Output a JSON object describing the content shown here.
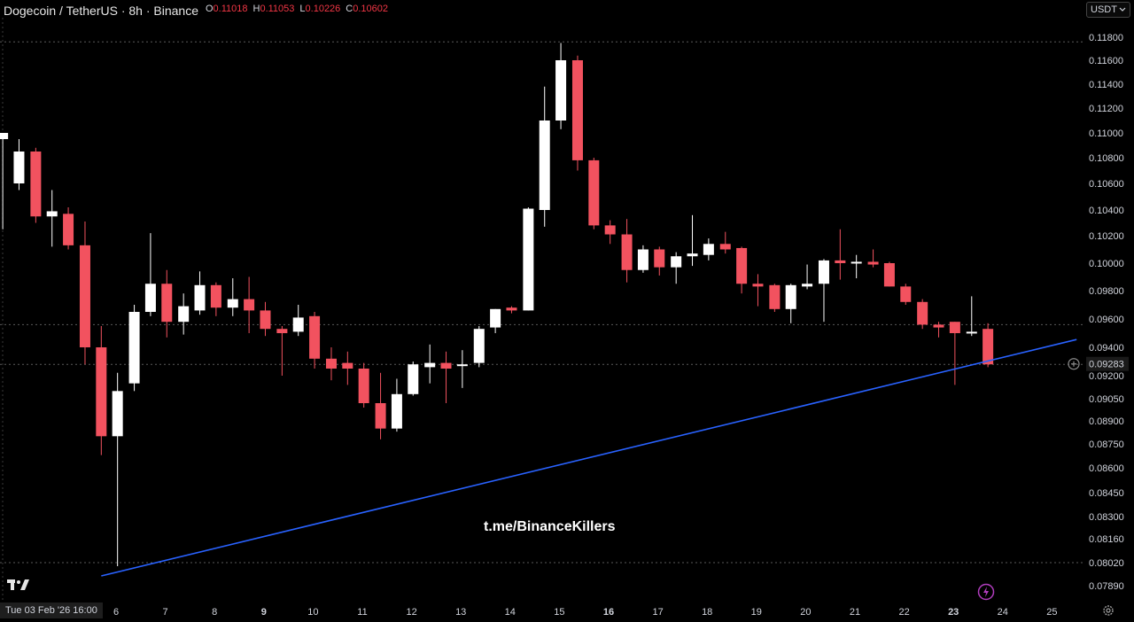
{
  "header": {
    "symbol": "Dogecoin / TetherUS · 8h · Binance",
    "o_label": "O",
    "o_value": "0.11018",
    "h_label": "H",
    "h_value": "0.11053",
    "l_label": "L",
    "l_value": "0.10226",
    "c_label": "C",
    "c_value": "0.10602"
  },
  "currency_select": "USDT",
  "date_badge": "Tue 03 Feb '26   16:00",
  "watermark": "t.me/BinanceKillers",
  "colors": {
    "up": "#ffffff",
    "down": "#f2525f",
    "trendline": "#2962ff",
    "background": "#000000"
  },
  "icons": {
    "logo": "tradingview-logo-icon",
    "settings": "gear-icon",
    "alert": "bolt-icon",
    "add": "plus-circle-icon"
  },
  "chart_data": {
    "type": "candlestick",
    "y_ticks": [
      "0.11800",
      "0.11600",
      "0.11400",
      "0.11200",
      "0.11000",
      "0.10800",
      "0.10600",
      "0.10400",
      "0.10200",
      "0.10000",
      "0.09800",
      "0.09600",
      "0.09400",
      "0.09200",
      "0.09050",
      "0.08900",
      "0.08750",
      "0.08600",
      "0.08450",
      "0.08300",
      "0.08160",
      "0.08020",
      "0.07890"
    ],
    "x_ticks": [
      "6",
      "7",
      "8",
      "9",
      "10",
      "11",
      "12",
      "13",
      "14",
      "15",
      "16",
      "17",
      "18",
      "19",
      "20",
      "21",
      "22",
      "23",
      "24",
      "25"
    ],
    "bold_x_ticks": [
      "9",
      "16",
      "23"
    ],
    "current_price": "0.09283",
    "horizontal_levels": [
      0.1176,
      0.0956,
      0.0928,
      0.0802
    ],
    "trendline": {
      "from": {
        "x": 5.7,
        "y": 0.07945
      },
      "to": {
        "x": 25.5,
        "y": 0.09455
      }
    },
    "candles": [
      {
        "x": 3.7,
        "o": 0.1095,
        "h": 0.1098,
        "l": 0.1025,
        "c": 0.11
      },
      {
        "x": 4.03,
        "o": 0.106,
        "h": 0.1095,
        "l": 0.1055,
        "c": 0.1085
      },
      {
        "x": 4.37,
        "o": 0.1085,
        "h": 0.1088,
        "l": 0.103,
        "c": 0.1035
      },
      {
        "x": 4.7,
        "o": 0.1035,
        "h": 0.1055,
        "l": 0.1012,
        "c": 0.1039
      },
      {
        "x": 5.03,
        "o": 0.1037,
        "h": 0.1042,
        "l": 0.101,
        "c": 0.1013
      },
      {
        "x": 5.37,
        "o": 0.1013,
        "h": 0.1031,
        "l": 0.0928,
        "c": 0.094
      },
      {
        "x": 5.7,
        "o": 0.094,
        "h": 0.0955,
        "l": 0.0868,
        "c": 0.088
      },
      {
        "x": 6.03,
        "o": 0.088,
        "h": 0.0922,
        "l": 0.08,
        "c": 0.091
      },
      {
        "x": 6.37,
        "o": 0.0915,
        "h": 0.097,
        "l": 0.091,
        "c": 0.0965
      },
      {
        "x": 6.7,
        "o": 0.0965,
        "h": 0.1022,
        "l": 0.0962,
        "c": 0.0985
      },
      {
        "x": 7.03,
        "o": 0.0985,
        "h": 0.0995,
        "l": 0.0947,
        "c": 0.0958
      },
      {
        "x": 7.37,
        "o": 0.0958,
        "h": 0.0978,
        "l": 0.0949,
        "c": 0.0969
      },
      {
        "x": 7.7,
        "o": 0.0966,
        "h": 0.0994,
        "l": 0.0963,
        "c": 0.0984
      },
      {
        "x": 8.03,
        "o": 0.0984,
        "h": 0.0986,
        "l": 0.0962,
        "c": 0.0968
      },
      {
        "x": 8.37,
        "o": 0.0968,
        "h": 0.0989,
        "l": 0.0962,
        "c": 0.0974
      },
      {
        "x": 8.7,
        "o": 0.0974,
        "h": 0.099,
        "l": 0.095,
        "c": 0.0966
      },
      {
        "x": 9.03,
        "o": 0.0966,
        "h": 0.0972,
        "l": 0.0948,
        "c": 0.0953
      },
      {
        "x": 9.37,
        "o": 0.0953,
        "h": 0.0955,
        "l": 0.092,
        "c": 0.095
      },
      {
        "x": 9.7,
        "o": 0.0951,
        "h": 0.097,
        "l": 0.0948,
        "c": 0.0961
      },
      {
        "x": 10.03,
        "o": 0.0962,
        "h": 0.0965,
        "l": 0.0925,
        "c": 0.0932
      },
      {
        "x": 10.37,
        "o": 0.0932,
        "h": 0.094,
        "l": 0.0917,
        "c": 0.0925
      },
      {
        "x": 10.7,
        "o": 0.0929,
        "h": 0.0937,
        "l": 0.0914,
        "c": 0.0925
      },
      {
        "x": 11.03,
        "o": 0.0925,
        "h": 0.0929,
        "l": 0.0899,
        "c": 0.0902
      },
      {
        "x": 11.37,
        "o": 0.0902,
        "h": 0.0922,
        "l": 0.0878,
        "c": 0.0885
      },
      {
        "x": 11.7,
        "o": 0.0885,
        "h": 0.0918,
        "l": 0.0883,
        "c": 0.0908
      },
      {
        "x": 12.03,
        "o": 0.0908,
        "h": 0.093,
        "l": 0.0907,
        "c": 0.0928
      },
      {
        "x": 12.37,
        "o": 0.0926,
        "h": 0.0942,
        "l": 0.0915,
        "c": 0.0929
      },
      {
        "x": 12.7,
        "o": 0.0929,
        "h": 0.0937,
        "l": 0.0902,
        "c": 0.0925
      },
      {
        "x": 13.03,
        "o": 0.0927,
        "h": 0.0938,
        "l": 0.0912,
        "c": 0.0928
      },
      {
        "x": 13.37,
        "o": 0.0929,
        "h": 0.0955,
        "l": 0.0926,
        "c": 0.0953
      },
      {
        "x": 13.7,
        "o": 0.0954,
        "h": 0.0967,
        "l": 0.095,
        "c": 0.0967
      },
      {
        "x": 14.03,
        "o": 0.0968,
        "h": 0.0969,
        "l": 0.0964,
        "c": 0.0966
      },
      {
        "x": 14.37,
        "o": 0.0966,
        "h": 0.1042,
        "l": 0.0966,
        "c": 0.1041
      },
      {
        "x": 14.7,
        "o": 0.104,
        "h": 0.1138,
        "l": 0.1027,
        "c": 0.111
      },
      {
        "x": 15.03,
        "o": 0.111,
        "h": 0.1175,
        "l": 0.1103,
        "c": 0.116
      },
      {
        "x": 15.37,
        "o": 0.116,
        "h": 0.1164,
        "l": 0.107,
        "c": 0.1078
      },
      {
        "x": 15.7,
        "o": 0.1078,
        "h": 0.108,
        "l": 0.1025,
        "c": 0.1028
      },
      {
        "x": 16.03,
        "o": 0.1028,
        "h": 0.1032,
        "l": 0.1014,
        "c": 0.1021
      },
      {
        "x": 16.37,
        "o": 0.1021,
        "h": 0.1033,
        "l": 0.0986,
        "c": 0.0995
      },
      {
        "x": 16.7,
        "o": 0.0995,
        "h": 0.1013,
        "l": 0.0993,
        "c": 0.101
      },
      {
        "x": 17.03,
        "o": 0.101,
        "h": 0.1012,
        "l": 0.0991,
        "c": 0.0997
      },
      {
        "x": 17.37,
        "o": 0.0997,
        "h": 0.1008,
        "l": 0.0985,
        "c": 0.1005
      },
      {
        "x": 17.7,
        "o": 0.1005,
        "h": 0.1036,
        "l": 0.0998,
        "c": 0.1007
      },
      {
        "x": 18.03,
        "o": 0.1006,
        "h": 0.1018,
        "l": 0.1002,
        "c": 0.1014
      },
      {
        "x": 18.37,
        "o": 0.1014,
        "h": 0.1023,
        "l": 0.1007,
        "c": 0.101
      },
      {
        "x": 18.7,
        "o": 0.1011,
        "h": 0.1012,
        "l": 0.0978,
        "c": 0.0985
      },
      {
        "x": 19.03,
        "o": 0.0985,
        "h": 0.0992,
        "l": 0.0969,
        "c": 0.0983
      },
      {
        "x": 19.37,
        "o": 0.0984,
        "h": 0.0985,
        "l": 0.0965,
        "c": 0.0967
      },
      {
        "x": 19.7,
        "o": 0.0967,
        "h": 0.0985,
        "l": 0.0957,
        "c": 0.0984
      },
      {
        "x": 20.03,
        "o": 0.0983,
        "h": 0.0999,
        "l": 0.0981,
        "c": 0.0985
      },
      {
        "x": 20.37,
        "o": 0.0985,
        "h": 0.1003,
        "l": 0.0958,
        "c": 0.1002
      },
      {
        "x": 20.7,
        "o": 0.1002,
        "h": 0.1025,
        "l": 0.0988,
        "c": 0.1
      },
      {
        "x": 21.03,
        "o": 0.1,
        "h": 0.1006,
        "l": 0.0989,
        "c": 0.1001
      },
      {
        "x": 21.37,
        "o": 0.1001,
        "h": 0.101,
        "l": 0.0997,
        "c": 0.0999
      },
      {
        "x": 21.7,
        "o": 0.1,
        "h": 0.1001,
        "l": 0.0983,
        "c": 0.0983
      },
      {
        "x": 22.03,
        "o": 0.0983,
        "h": 0.0985,
        "l": 0.097,
        "c": 0.0972
      },
      {
        "x": 22.37,
        "o": 0.0972,
        "h": 0.0974,
        "l": 0.0953,
        "c": 0.0956
      },
      {
        "x": 22.7,
        "o": 0.0956,
        "h": 0.0958,
        "l": 0.0947,
        "c": 0.0954
      },
      {
        "x": 23.03,
        "o": 0.0958,
        "h": 0.0958,
        "l": 0.0914,
        "c": 0.095
      },
      {
        "x": 23.37,
        "o": 0.095,
        "h": 0.0976,
        "l": 0.0948,
        "c": 0.0951
      },
      {
        "x": 23.7,
        "o": 0.0953,
        "h": 0.0957,
        "l": 0.0926,
        "c": 0.0928
      }
    ]
  }
}
